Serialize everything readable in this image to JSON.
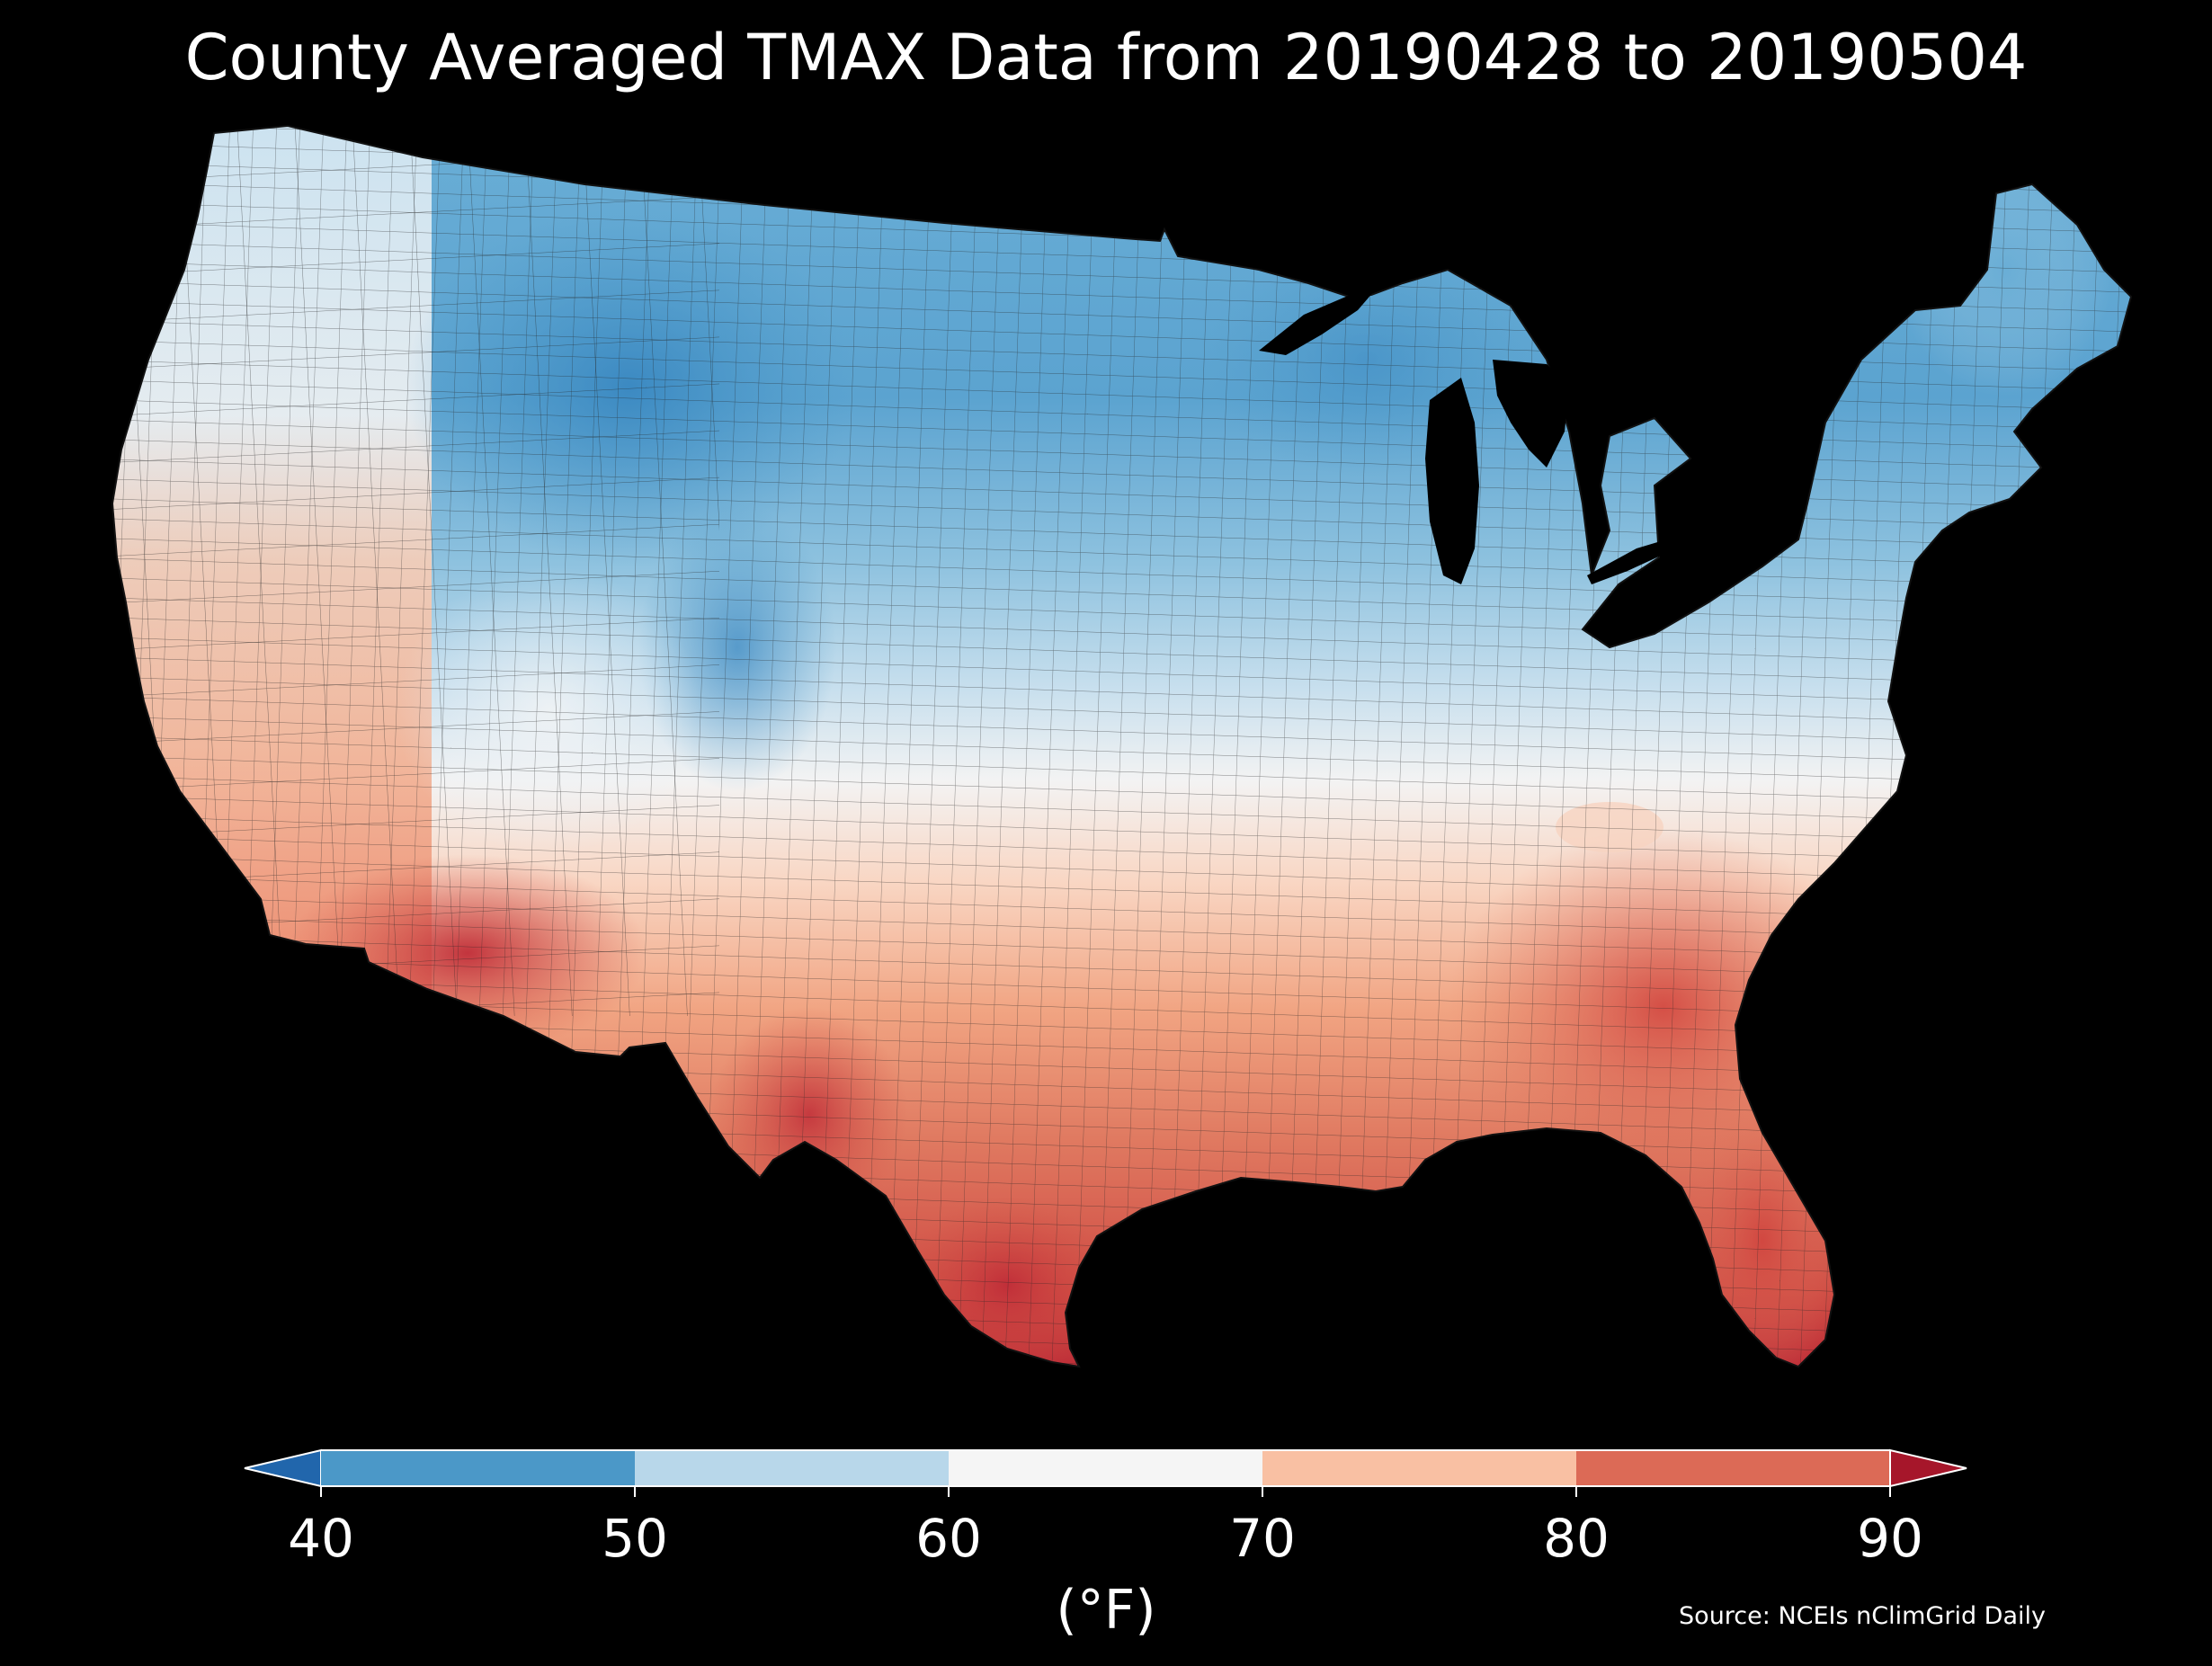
{
  "title": "County Averaged TMAX Data from 20190428 to 20190504",
  "map": {
    "region": "Contiguous United States",
    "unit_of_regions": "county",
    "variable": "TMAX",
    "background": "#000000",
    "county_border_color": "#222222"
  },
  "colorbar": {
    "label": "(°F)",
    "ticks": [
      "40",
      "50",
      "60",
      "70",
      "80",
      "90"
    ],
    "bins": [
      {
        "range": [
          null,
          40
        ],
        "color": "#2166ac",
        "extend": "min"
      },
      {
        "range": [
          40,
          50
        ],
        "color": "#4b98c8"
      },
      {
        "range": [
          50,
          60
        ],
        "color": "#b8d7ea"
      },
      {
        "range": [
          60,
          70
        ],
        "color": "#f5f5f5"
      },
      {
        "range": [
          70,
          80
        ],
        "color": "#f9c0a3"
      },
      {
        "range": [
          80,
          90
        ],
        "color": "#dc6a56"
      },
      {
        "range": [
          90,
          null
        ],
        "color": "#a6162a",
        "extend": "max"
      }
    ]
  },
  "source": "Source: NCEIs nClimGrid Daily"
}
